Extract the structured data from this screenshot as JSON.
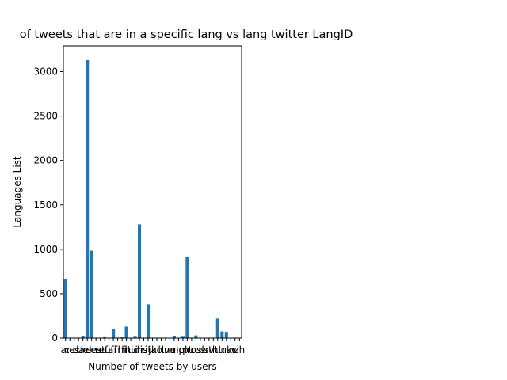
{
  "chart_data": {
    "type": "bar",
    "title": "of tweets that are in a specific lang vs lang twitter LangID",
    "xlabel": "Number of tweets by users",
    "ylabel": "Languages List",
    "categories": [
      "ar",
      "ca",
      "cs",
      "da",
      "de",
      "el",
      "en",
      "es",
      "et",
      "eu",
      "fa",
      "fi",
      "fr",
      "hi",
      "ht",
      "hu",
      "id",
      "in",
      "is",
      "it",
      "ja",
      "ko",
      "lt",
      "lv",
      "ne",
      "nl",
      "no",
      "pl",
      "pt",
      "ro",
      "ru",
      "sl",
      "sr",
      "sv",
      "th",
      "tl",
      "tr",
      "uk",
      "ur",
      "vi",
      "zh"
    ],
    "values": [
      660,
      0,
      2,
      5,
      18,
      3130,
      985,
      5,
      2,
      10,
      3,
      100,
      5,
      8,
      130,
      0,
      15,
      1280,
      0,
      380,
      3,
      0,
      0,
      2,
      0,
      20,
      0,
      15,
      910,
      0,
      30,
      0,
      0,
      2,
      2,
      220,
      75,
      70,
      0,
      5,
      2
    ],
    "ylim": [
      0,
      3290
    ],
    "yticks": [
      0,
      500,
      1000,
      1500,
      2000,
      2500,
      3000
    ],
    "xtick_labels": [
      "ar",
      "ca",
      "cs",
      "da",
      "de",
      "el",
      "en",
      "es",
      "et",
      "eu",
      "fa",
      "fi",
      "fr",
      "hi",
      "ht",
      "hu",
      "id",
      "in",
      "is",
      "it",
      "ja",
      "ko",
      "lt",
      "lv",
      "ne",
      "nl",
      "no",
      "pl",
      "pt",
      "ro",
      "ru",
      "sl",
      "sr",
      "sv",
      "th",
      "tl",
      "tr",
      "uk",
      "ur",
      "vi",
      "zh"
    ],
    "bar_color": "#1f77b4",
    "grid": false,
    "legend": "none"
  }
}
